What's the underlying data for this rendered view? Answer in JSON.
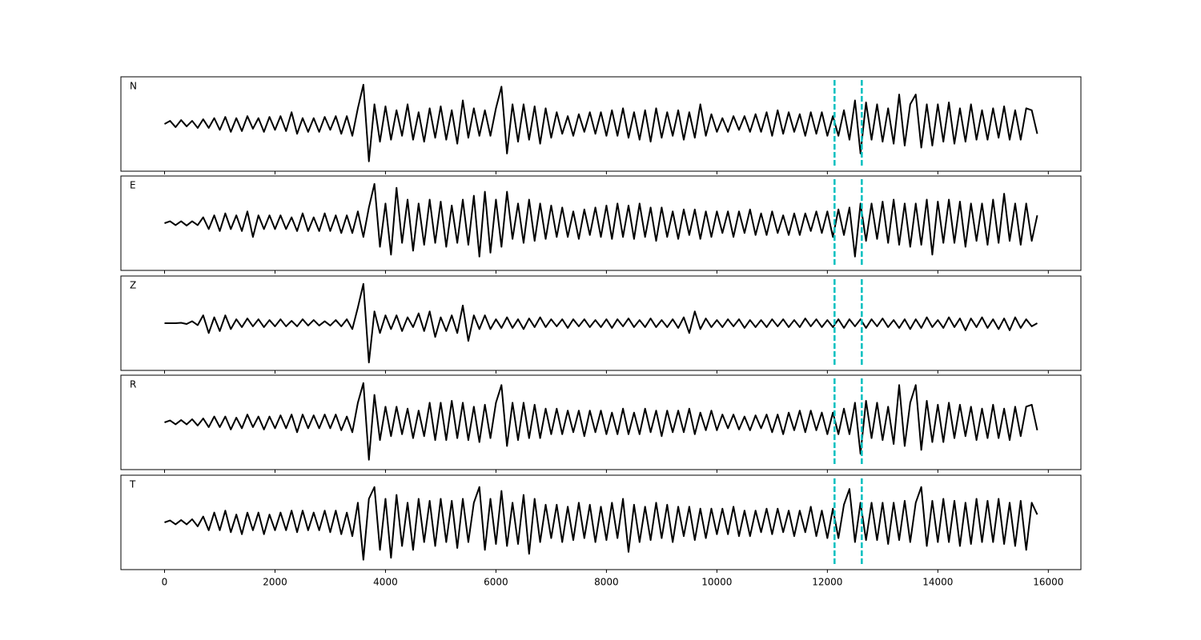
{
  "chart_data": {
    "type": "line",
    "subplots": true,
    "x": [
      0,
      100,
      200,
      300,
      400,
      500,
      600,
      700,
      800,
      900,
      1000,
      1100,
      1200,
      1300,
      1400,
      1500,
      1600,
      1700,
      1800,
      1900,
      2000,
      2100,
      2200,
      2300,
      2400,
      2500,
      2600,
      2700,
      2800,
      2900,
      3000,
      3100,
      3200,
      3300,
      3400,
      3500,
      3600,
      3700,
      3800,
      3900,
      4000,
      4100,
      4200,
      4300,
      4400,
      4500,
      4600,
      4700,
      4800,
      4900,
      5000,
      5100,
      5200,
      5300,
      5400,
      5500,
      5600,
      5700,
      5800,
      5900,
      6000,
      6100,
      6200,
      6300,
      6400,
      6500,
      6600,
      6700,
      6800,
      6900,
      7000,
      7100,
      7200,
      7300,
      7400,
      7500,
      7600,
      7700,
      7800,
      7900,
      8000,
      8100,
      8200,
      8300,
      8400,
      8500,
      8600,
      8700,
      8800,
      8900,
      9000,
      9100,
      9200,
      9300,
      9400,
      9500,
      9600,
      9700,
      9800,
      9900,
      10000,
      10100,
      10200,
      10300,
      10400,
      10500,
      10600,
      10700,
      10800,
      10900,
      11000,
      11100,
      11200,
      11300,
      11400,
      11500,
      11600,
      11700,
      11800,
      11900,
      12000,
      12100,
      12200,
      12300,
      12400,
      12500,
      12600,
      12700,
      12800,
      12900,
      13000,
      13100,
      13200,
      13300,
      13400,
      13500,
      13600,
      13700,
      13800,
      13900,
      14000,
      14100,
      14200,
      14300,
      14400,
      14500,
      14600,
      14700,
      14800,
      14900,
      15000,
      15100,
      15200,
      15300,
      15400,
      15500,
      15600,
      15700,
      15800
    ],
    "xlim": [
      -790,
      16590
    ],
    "xticks": [
      0,
      2000,
      4000,
      6000,
      8000,
      10000,
      12000,
      14000,
      16000
    ],
    "ylim": [
      -1.2,
      1.2
    ],
    "series": [
      {
        "name": "N",
        "color": "#000000",
        "values": [
          0,
          0.08,
          -0.08,
          0.1,
          -0.06,
          0.08,
          -0.1,
          0.12,
          -0.1,
          0.15,
          -0.15,
          0.18,
          -0.2,
          0.15,
          -0.18,
          0.2,
          -0.12,
          0.15,
          -0.2,
          0.18,
          -0.15,
          0.2,
          -0.18,
          0.3,
          -0.25,
          0.15,
          -0.2,
          0.15,
          -0.2,
          0.18,
          -0.15,
          0.2,
          -0.25,
          0.2,
          -0.3,
          0.4,
          1.0,
          -0.95,
          0.5,
          -0.45,
          0.45,
          -0.4,
          0.35,
          -0.3,
          0.5,
          -0.4,
          0.3,
          -0.45,
          0.4,
          -0.35,
          0.45,
          -0.4,
          0.35,
          -0.5,
          0.6,
          -0.35,
          0.4,
          -0.3,
          0.35,
          -0.3,
          0.4,
          0.95,
          -0.75,
          0.5,
          -0.45,
          0.5,
          -0.4,
          0.45,
          -0.5,
          0.4,
          -0.35,
          0.3,
          -0.25,
          0.2,
          -0.3,
          0.25,
          -0.2,
          0.3,
          -0.25,
          0.3,
          -0.3,
          0.35,
          -0.3,
          0.4,
          -0.35,
          0.3,
          -0.4,
          0.35,
          -0.45,
          0.4,
          -0.35,
          0.3,
          -0.3,
          0.35,
          -0.4,
          0.3,
          -0.35,
          0.5,
          -0.3,
          0.25,
          -0.2,
          0.15,
          -0.2,
          0.2,
          -0.15,
          0.2,
          -0.2,
          0.25,
          -0.2,
          0.3,
          -0.3,
          0.35,
          -0.25,
          0.3,
          -0.2,
          0.25,
          -0.3,
          0.3,
          -0.25,
          0.3,
          -0.3,
          0.2,
          -0.3,
          0.35,
          -0.4,
          0.6,
          -0.75,
          0.55,
          -0.4,
          0.5,
          -0.45,
          0.4,
          -0.5,
          0.75,
          -0.55,
          0.5,
          0.75,
          -0.6,
          0.5,
          -0.55,
          0.5,
          -0.45,
          0.55,
          -0.5,
          0.4,
          -0.45,
          0.5,
          -0.4,
          0.35,
          -0.4,
          0.4,
          -0.35,
          0.45,
          -0.4,
          0.35,
          -0.4,
          0.4,
          0.35,
          -0.25
        ]
      },
      {
        "name": "E",
        "color": "#000000",
        "values": [
          0,
          0.05,
          -0.05,
          0.05,
          -0.06,
          0.05,
          -0.05,
          0.15,
          -0.15,
          0.2,
          -0.2,
          0.25,
          -0.15,
          0.2,
          -0.2,
          0.3,
          -0.35,
          0.2,
          -0.15,
          0.2,
          -0.15,
          0.2,
          -0.15,
          0.15,
          -0.2,
          0.25,
          -0.2,
          0.15,
          -0.2,
          0.25,
          -0.2,
          0.2,
          -0.25,
          0.2,
          -0.25,
          0.3,
          -0.35,
          0.4,
          1.0,
          -0.6,
          0.5,
          -0.8,
          0.9,
          -0.5,
          0.6,
          -0.7,
          0.5,
          -0.55,
          0.6,
          -0.5,
          0.55,
          -0.6,
          0.45,
          -0.5,
          0.6,
          -0.55,
          0.7,
          -0.85,
          0.8,
          -0.75,
          0.6,
          -0.6,
          0.8,
          -0.4,
          0.5,
          -0.5,
          0.6,
          -0.45,
          0.5,
          -0.4,
          0.45,
          -0.35,
          0.4,
          -0.35,
          0.3,
          -0.4,
          0.35,
          -0.3,
          0.4,
          -0.35,
          0.45,
          -0.4,
          0.5,
          -0.35,
          0.45,
          -0.4,
          0.5,
          -0.35,
          0.4,
          -0.45,
          0.4,
          -0.35,
          0.3,
          -0.4,
          0.35,
          -0.3,
          0.35,
          -0.4,
          0.3,
          -0.35,
          0.3,
          -0.25,
          0.3,
          -0.35,
          0.3,
          -0.25,
          0.35,
          -0.3,
          0.25,
          -0.3,
          0.3,
          -0.25,
          0.2,
          -0.3,
          0.25,
          -0.3,
          0.25,
          -0.2,
          0.3,
          -0.25,
          0.3,
          -0.35,
          0.35,
          -0.3,
          0.4,
          -0.85,
          0.5,
          -0.45,
          0.5,
          -0.4,
          0.55,
          -0.5,
          0.6,
          -0.55,
          0.5,
          -0.6,
          0.5,
          -0.55,
          0.6,
          -0.8,
          0.55,
          -0.5,
          0.6,
          -0.5,
          0.55,
          -0.6,
          0.5,
          -0.45,
          0.5,
          -0.55,
          0.6,
          -0.5,
          0.75,
          -0.45,
          0.5,
          -0.55,
          0.5,
          -0.45,
          0.2
        ]
      },
      {
        "name": "Z",
        "color": "#000000",
        "values": [
          0,
          0,
          0,
          0.01,
          -0.02,
          0.05,
          -0.05,
          0.2,
          -0.25,
          0.15,
          -0.2,
          0.2,
          -0.15,
          0.1,
          -0.1,
          0.12,
          -0.08,
          0.1,
          -0.1,
          0.08,
          -0.08,
          0.1,
          -0.08,
          0.06,
          -0.08,
          0.1,
          -0.06,
          0.08,
          -0.06,
          0.05,
          -0.06,
          0.08,
          -0.08,
          0.1,
          -0.15,
          0.4,
          1.0,
          -1.0,
          0.3,
          -0.25,
          0.2,
          -0.15,
          0.2,
          -0.2,
          0.15,
          -0.1,
          0.25,
          -0.2,
          0.3,
          -0.35,
          0.15,
          -0.2,
          0.2,
          -0.25,
          0.45,
          -0.45,
          0.2,
          -0.15,
          0.2,
          -0.15,
          0.1,
          -0.12,
          0.15,
          -0.12,
          0.1,
          -0.15,
          0.12,
          -0.1,
          0.15,
          -0.1,
          0.1,
          -0.08,
          0.1,
          -0.12,
          0.1,
          -0.08,
          0.1,
          -0.1,
          0.08,
          -0.1,
          0.1,
          -0.12,
          0.1,
          -0.08,
          0.12,
          -0.1,
          0.08,
          -0.1,
          0.12,
          -0.1,
          0.08,
          -0.1,
          0.1,
          -0.12,
          0.15,
          -0.25,
          0.3,
          -0.15,
          0.12,
          -0.1,
          0.08,
          -0.1,
          0.1,
          -0.08,
          0.1,
          -0.12,
          0.08,
          -0.1,
          0.08,
          -0.1,
          0.1,
          -0.08,
          0.1,
          -0.1,
          0.08,
          -0.1,
          0.12,
          -0.08,
          0.1,
          -0.1,
          0.08,
          -0.1,
          0.1,
          -0.12,
          0.1,
          -0.08,
          0.1,
          -0.12,
          0.1,
          -0.08,
          0.12,
          -0.1,
          0.08,
          -0.12,
          0.1,
          -0.15,
          0.1,
          -0.12,
          0.15,
          -0.1,
          0.08,
          -0.12,
          0.15,
          -0.1,
          0.12,
          -0.18,
          0.12,
          -0.1,
          0.15,
          -0.12,
          0.1,
          -0.15,
          0.12,
          -0.18,
          0.15,
          -0.12,
          0.1,
          -0.08,
          0
        ]
      },
      {
        "name": "R",
        "color": "#000000",
        "values": [
          0,
          0.05,
          -0.05,
          0.06,
          -0.05,
          0.08,
          -0.08,
          0.1,
          -0.12,
          0.15,
          -0.12,
          0.15,
          -0.18,
          0.12,
          -0.15,
          0.2,
          -0.12,
          0.15,
          -0.18,
          0.15,
          -0.15,
          0.18,
          -0.15,
          0.2,
          -0.25,
          0.2,
          -0.15,
          0.18,
          -0.15,
          0.2,
          -0.15,
          0.2,
          -0.2,
          0.15,
          -0.25,
          0.5,
          1.0,
          -0.95,
          0.7,
          -0.45,
          0.4,
          -0.35,
          0.4,
          -0.3,
          0.35,
          -0.4,
          0.3,
          -0.35,
          0.5,
          -0.45,
          0.5,
          -0.45,
          0.55,
          -0.4,
          0.5,
          -0.45,
          0.4,
          -0.5,
          0.45,
          -0.4,
          0.5,
          0.95,
          -0.6,
          0.5,
          -0.45,
          0.5,
          -0.4,
          0.45,
          -0.4,
          0.35,
          -0.3,
          0.35,
          -0.3,
          0.3,
          -0.25,
          0.3,
          -0.35,
          0.3,
          -0.25,
          0.3,
          -0.3,
          0.25,
          -0.3,
          0.35,
          -0.3,
          0.25,
          -0.3,
          0.35,
          -0.25,
          0.3,
          -0.35,
          0.3,
          -0.25,
          0.3,
          -0.25,
          0.35,
          -0.3,
          0.25,
          -0.2,
          0.3,
          -0.2,
          0.2,
          -0.15,
          0.2,
          -0.18,
          0.15,
          -0.2,
          0.18,
          -0.15,
          0.2,
          -0.25,
          0.2,
          -0.3,
          0.25,
          -0.2,
          0.3,
          -0.25,
          0.3,
          -0.2,
          0.25,
          -0.3,
          0.25,
          -0.3,
          0.35,
          -0.3,
          0.5,
          -0.8,
          0.55,
          -0.4,
          0.5,
          -0.45,
          0.4,
          -0.55,
          0.95,
          -0.6,
          0.5,
          0.95,
          -0.7,
          0.55,
          -0.5,
          0.45,
          -0.5,
          0.5,
          -0.4,
          0.45,
          -0.35,
          0.4,
          -0.45,
          0.35,
          -0.4,
          0.45,
          -0.4,
          0.35,
          -0.45,
          0.4,
          -0.35,
          0.4,
          0.45,
          -0.2
        ]
      },
      {
        "name": "T",
        "color": "#000000",
        "values": [
          0,
          0.05,
          -0.05,
          0.06,
          -0.05,
          0.08,
          -0.1,
          0.15,
          -0.2,
          0.25,
          -0.2,
          0.3,
          -0.25,
          0.2,
          -0.3,
          0.25,
          -0.2,
          0.25,
          -0.3,
          0.2,
          -0.2,
          0.25,
          -0.2,
          0.3,
          -0.25,
          0.3,
          -0.2,
          0.25,
          -0.2,
          0.3,
          -0.25,
          0.3,
          -0.3,
          0.25,
          -0.35,
          0.5,
          -0.95,
          0.6,
          0.9,
          -0.7,
          0.6,
          -0.9,
          0.7,
          -0.6,
          0.5,
          -0.7,
          0.6,
          -0.5,
          0.55,
          -0.6,
          0.6,
          -0.5,
          0.55,
          -0.65,
          0.6,
          -0.5,
          0.5,
          0.9,
          -0.7,
          0.6,
          -0.55,
          0.8,
          -0.6,
          0.5,
          -0.55,
          0.7,
          -0.8,
          0.6,
          -0.5,
          0.45,
          -0.4,
          0.45,
          -0.5,
          0.4,
          -0.45,
          0.5,
          -0.4,
          0.45,
          -0.5,
          0.4,
          -0.45,
          0.5,
          -0.4,
          0.6,
          -0.75,
          0.45,
          -0.5,
          0.4,
          -0.45,
          0.5,
          -0.4,
          0.45,
          -0.5,
          0.4,
          -0.35,
          0.4,
          -0.45,
          0.35,
          -0.4,
          0.35,
          -0.3,
          0.35,
          -0.3,
          0.4,
          -0.35,
          0.3,
          -0.35,
          0.3,
          -0.25,
          0.35,
          -0.3,
          0.35,
          -0.25,
          0.3,
          -0.35,
          0.3,
          -0.25,
          0.4,
          -0.35,
          0.3,
          -0.4,
          0.35,
          -0.4,
          0.45,
          0.85,
          -0.5,
          0.5,
          -0.45,
          0.5,
          -0.45,
          0.5,
          -0.55,
          0.5,
          -0.45,
          0.55,
          -0.5,
          0.5,
          0.9,
          -0.6,
          0.55,
          -0.5,
          0.6,
          -0.5,
          0.55,
          -0.6,
          0.5,
          -0.55,
          0.6,
          -0.5,
          0.55,
          -0.5,
          0.6,
          -0.55,
          0.5,
          -0.6,
          0.55,
          -0.7,
          0.5,
          0.2
        ]
      }
    ],
    "vlines": {
      "color": "#00bfbf",
      "style": "dashed",
      "values": [
        12130,
        12623
      ]
    }
  }
}
